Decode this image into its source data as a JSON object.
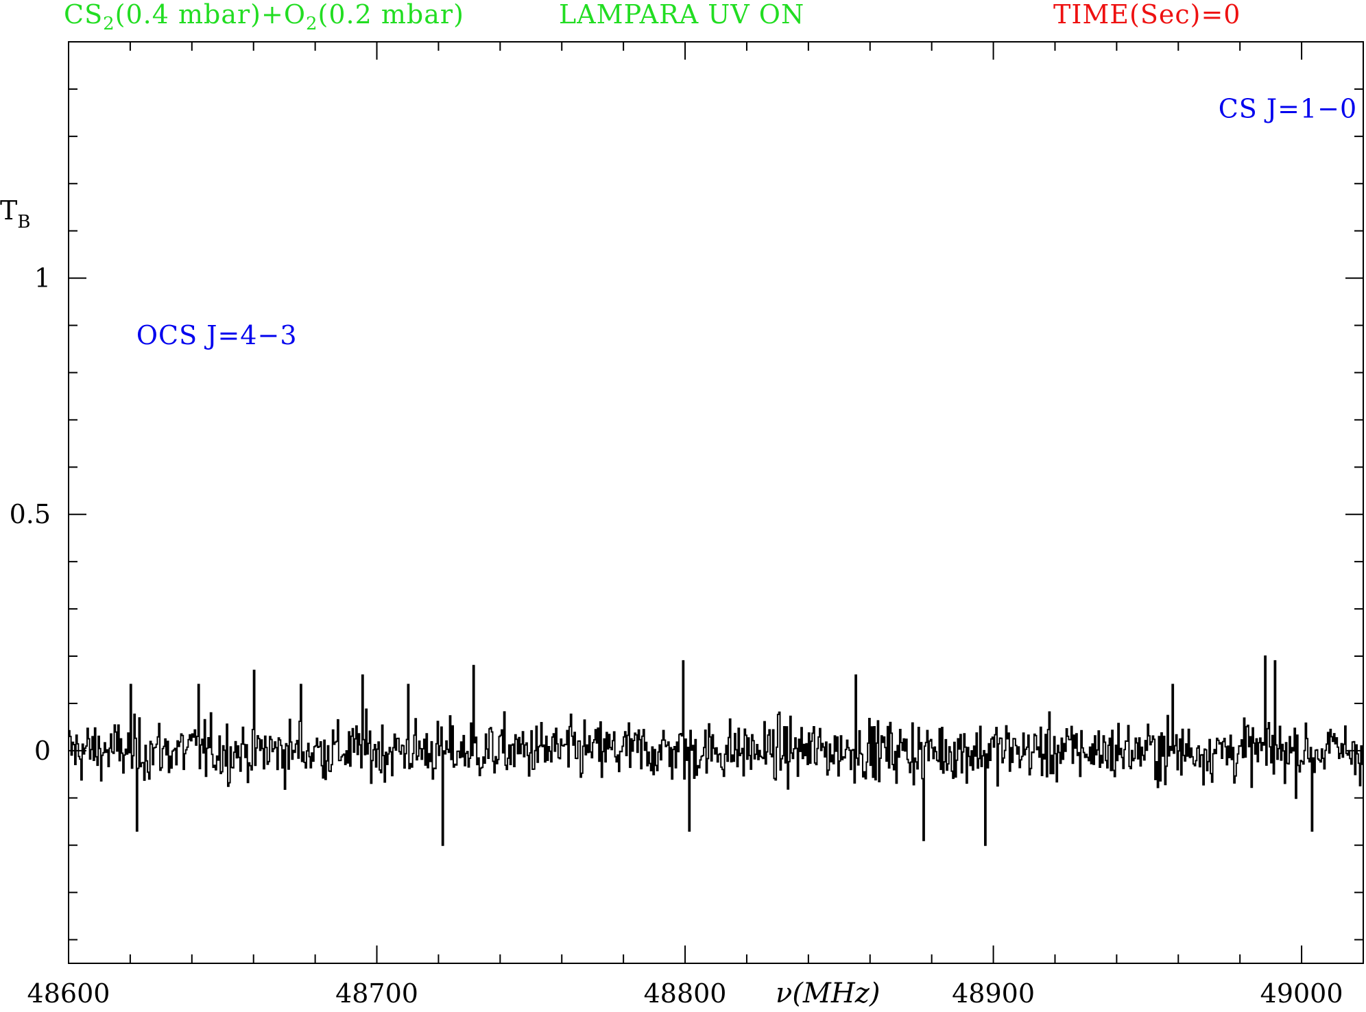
{
  "header": {
    "sample_cs2": "CS",
    "sample_cs2_sub": "2",
    "sample_cs2_pressure": "(0.4 mbar)+O",
    "sample_o2_sub": "2",
    "sample_o2_pressure": "(0.2 mbar)",
    "lamp_status": "LAMPARA UV ON",
    "time_label": "TIME(Sec)=0"
  },
  "colors": {
    "header_green": "#22dd22",
    "time_red": "#ee1111",
    "annotation_blue": "#0000ee",
    "trace": "#000000"
  },
  "chart_data": {
    "type": "line",
    "style": "histogram-step",
    "xlabel": "ν(MHz)",
    "ylabel": "T",
    "ylabel_sub": "B",
    "xlim": [
      48600,
      49020
    ],
    "ylim": [
      -0.45,
      1.5
    ],
    "x_ticks": [
      48600,
      48700,
      48800,
      48900,
      49000
    ],
    "x_tick_labels": [
      "48600",
      "48700",
      "48800",
      "48900",
      "49000"
    ],
    "x_minor_step": 20,
    "y_ticks": [
      0,
      0.5,
      1
    ],
    "y_tick_labels": [
      "0",
      "0.5",
      "1"
    ],
    "y_minor_step": 0.1,
    "grid": false,
    "annotations": [
      {
        "text": "OCS J=4−3",
        "x": 48622,
        "y": 0.86
      },
      {
        "text": "CS J=1−0",
        "x": 48973,
        "y": 1.34
      }
    ],
    "series": [
      {
        "noise": {
          "mean": 0.0,
          "amplitude": 0.1,
          "channel_width_mhz": 0.4
        },
        "features": [
          {
            "x": 48620,
            "y": 0.14
          },
          {
            "x": 48622,
            "y": -0.17
          },
          {
            "x": 48642,
            "y": 0.14
          },
          {
            "x": 48660,
            "y": 0.17
          },
          {
            "x": 48675,
            "y": 0.14
          },
          {
            "x": 48695,
            "y": 0.16
          },
          {
            "x": 48710,
            "y": 0.14
          },
          {
            "x": 48721,
            "y": -0.2
          },
          {
            "x": 48731,
            "y": 0.18
          },
          {
            "x": 48799,
            "y": 0.19
          },
          {
            "x": 48801,
            "y": -0.17
          },
          {
            "x": 48855,
            "y": 0.16
          },
          {
            "x": 48877,
            "y": -0.19
          },
          {
            "x": 48897,
            "y": -0.2
          },
          {
            "x": 48958,
            "y": 0.14
          },
          {
            "x": 48988,
            "y": 0.2
          },
          {
            "x": 48991,
            "y": 0.19
          },
          {
            "x": 49003,
            "y": -0.17
          }
        ]
      }
    ]
  }
}
